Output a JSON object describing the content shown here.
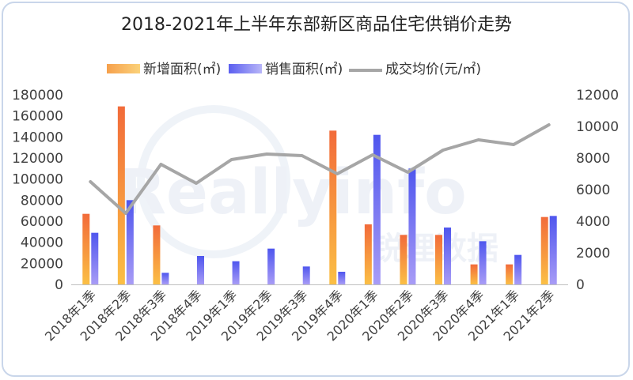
{
  "chart_data": {
    "type": "bar",
    "title": "2018-2021年上半年东部新区商品住宅供销价走势",
    "categories": [
      "2018年1季",
      "2018年2季",
      "2018年3季",
      "2018年4季",
      "2019年1季",
      "2019年2季",
      "2019年3季",
      "2019年4季",
      "2020年1季",
      "2020年2季",
      "2020年3季",
      "2020年4季",
      "2021年1季",
      "2021年2季"
    ],
    "series": [
      {
        "name": "新增面积(㎡)",
        "type": "bar",
        "axis": "left",
        "color": "#f0863e",
        "values": [
          67000,
          169000,
          56000,
          0,
          0,
          0,
          0,
          146000,
          57000,
          47000,
          47000,
          19000,
          19000,
          64000
        ]
      },
      {
        "name": "销售面积(㎡)",
        "type": "bar",
        "axis": "left",
        "color": "#5b5ff0",
        "values": [
          49000,
          80000,
          11000,
          27000,
          22000,
          34000,
          17000,
          12000,
          142000,
          110000,
          54000,
          41000,
          28000,
          65000
        ]
      },
      {
        "name": "成交均价(元/㎡)",
        "type": "line",
        "axis": "right",
        "color": "#a6a6a6",
        "values": [
          6500,
          4500,
          7600,
          6400,
          7900,
          8250,
          8150,
          7000,
          8200,
          7100,
          8500,
          9150,
          8850,
          10100
        ]
      }
    ],
    "y_left": {
      "min": 0,
      "max": 180000,
      "ticks": [
        "0",
        "20000",
        "40000",
        "60000",
        "80000",
        "100000",
        "120000",
        "140000",
        "160000",
        "180000"
      ]
    },
    "y_right": {
      "min": 0,
      "max": 12000,
      "ticks": [
        "0",
        "2000",
        "4000",
        "6000",
        "8000",
        "10000",
        "12000"
      ]
    },
    "legend_position": "top",
    "grid": false
  },
  "watermark": {
    "text": "Reallyinfo",
    "cn": "锐理数据"
  }
}
